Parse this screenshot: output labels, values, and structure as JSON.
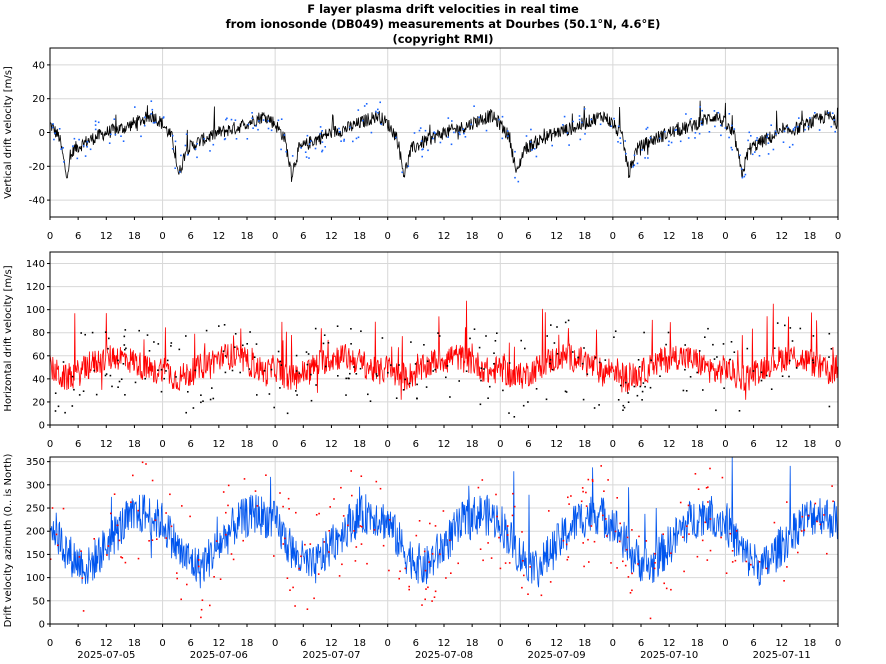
{
  "title": {
    "line1": "F layer plasma drift velocities in real time",
    "line2": "from ionosonde (DB049) measurements at Dourbes (50.1°N, 4.6°E)",
    "line3": "(copyright RMI)"
  },
  "colors": {
    "vertical_line": "#000000",
    "vertical_points": "#1a66ff",
    "horizontal_line": "#ff0000",
    "horizontal_points": "#000000",
    "azimuth_line": "#0055ee",
    "azimuth_points": "#ff0000",
    "grid": "#d8d8d8"
  },
  "chart_data": [
    {
      "type": "line",
      "ylabel": "Vertical drift velocity [m/s]",
      "ylim": [
        -50,
        50
      ],
      "yticks": [
        -40,
        -20,
        0,
        20,
        40
      ],
      "xlim_hours": [
        0,
        168
      ],
      "xtick_labels": [
        "0",
        "6",
        "12",
        "18",
        "0",
        "6",
        "12",
        "18",
        "0",
        "6",
        "12",
        "18",
        "0",
        "6",
        "12",
        "18",
        "0",
        "6",
        "12",
        "18",
        "0",
        "6",
        "12",
        "18",
        "0",
        "6",
        "12",
        "18",
        "0"
      ],
      "grid": true,
      "series": [
        {
          "style": "line",
          "color": "black",
          "daily_profile": {
            "hours": [
              0,
              2,
              3.5,
              5,
              8,
              12,
              16,
              20,
              22,
              24
            ],
            "values": [
              5,
              -3,
              -25,
              -10,
              -5,
              0,
              3,
              8,
              10,
              5
            ]
          }
        },
        {
          "style": "points",
          "color": "blue",
          "daily_profile": {
            "hours": [
              0,
              2,
              3.5,
              5,
              8,
              12,
              16,
              20,
              22,
              24
            ],
            "values": [
              5,
              -3,
              -25,
              -10,
              -5,
              0,
              3,
              8,
              10,
              5
            ]
          }
        }
      ]
    },
    {
      "type": "line",
      "ylabel": "Horizontal drift velocity [m/s]",
      "ylim": [
        0,
        150
      ],
      "yticks": [
        0,
        20,
        40,
        60,
        80,
        100,
        120,
        140
      ],
      "xlim_hours": [
        0,
        168
      ],
      "xtick_labels": [
        "0",
        "6",
        "12",
        "18",
        "0",
        "6",
        "12",
        "18",
        "0",
        "6",
        "12",
        "18",
        "0",
        "6",
        "12",
        "18",
        "0",
        "6",
        "12",
        "18",
        "0",
        "6",
        "12",
        "18",
        "0",
        "6",
        "12",
        "18",
        "0"
      ],
      "grid": true,
      "series": [
        {
          "style": "line",
          "color": "red",
          "daily_profile": {
            "hours": [
              0,
              3,
              6,
              10,
              14,
              18,
              22,
              24
            ],
            "values": [
              50,
              40,
              45,
              55,
              60,
              55,
              45,
              50
            ]
          }
        },
        {
          "style": "points",
          "color": "black",
          "daily_profile": {
            "hours": [
              0,
              3,
              6,
              10,
              14,
              18,
              22,
              24
            ],
            "values": [
              50,
              40,
              45,
              55,
              60,
              55,
              45,
              50
            ]
          }
        }
      ]
    },
    {
      "type": "line",
      "ylabel": "Drift velocity azimuth (0.. is North)",
      "ylim": [
        0,
        360
      ],
      "yticks": [
        0,
        50,
        100,
        150,
        200,
        250,
        300,
        350
      ],
      "xlim_hours": [
        0,
        168
      ],
      "xtick_labels": [
        "0",
        "6",
        "12",
        "18",
        "0",
        "6",
        "12",
        "18",
        "0",
        "6",
        "12",
        "18",
        "0",
        "6",
        "12",
        "18",
        "0",
        "6",
        "12",
        "18",
        "0",
        "6",
        "12",
        "18",
        "0",
        "6",
        "12",
        "18",
        "0"
      ],
      "date_labels": [
        "2025-07-05",
        "2025-07-06",
        "2025-07-07",
        "2025-07-08",
        "2025-07-09",
        "2025-07-10",
        "2025-07-11"
      ],
      "grid": true,
      "series": [
        {
          "style": "line",
          "color": "blue",
          "daily_profile": {
            "hours": [
              0,
              4,
              8,
              12,
              16,
              20,
              24
            ],
            "values": [
              220,
              150,
              120,
              170,
              220,
              240,
              220
            ]
          }
        },
        {
          "style": "points",
          "color": "red",
          "daily_profile": {
            "hours": [
              0,
              4,
              8,
              12,
              16,
              20,
              24
            ],
            "values": [
              220,
              150,
              120,
              170,
              220,
              240,
              220
            ]
          }
        }
      ]
    }
  ]
}
